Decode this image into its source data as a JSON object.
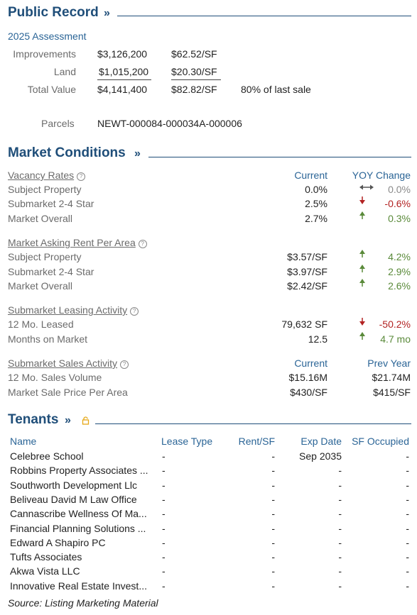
{
  "public_record": {
    "title": "Public Record",
    "assessment_year": "2025 Assessment",
    "rows": [
      {
        "label": "Improvements",
        "value": "$3,126,200",
        "per_sf": "$62.52/SF"
      },
      {
        "label": "Land",
        "value": "$1,015,200",
        "per_sf": "$20.30/SF"
      },
      {
        "label": "Total Value",
        "value": "$4,141,400",
        "per_sf": "$82.82/SF",
        "note": "80% of last sale"
      }
    ],
    "parcels_label": "Parcels",
    "parcels_value": "NEWT-000084-000034A-000006"
  },
  "market": {
    "title": "Market Conditions",
    "vacancy": {
      "title": "Vacancy Rates",
      "col1": "Current",
      "col2": "YOY Change",
      "rows": [
        {
          "label": "Subject Property",
          "current": "0.0%",
          "change": "0.0%",
          "trend": "flat"
        },
        {
          "label": "Submarket 2-4 Star",
          "current": "2.5%",
          "change": "-0.6%",
          "trend": "down"
        },
        {
          "label": "Market Overall",
          "current": "2.7%",
          "change": "0.3%",
          "trend": "up"
        }
      ]
    },
    "rent": {
      "title": "Market Asking Rent Per Area",
      "rows": [
        {
          "label": "Subject Property",
          "current": "$3.57/SF",
          "change": "4.2%",
          "trend": "up"
        },
        {
          "label": "Submarket 2-4 Star",
          "current": "$3.97/SF",
          "change": "2.9%",
          "trend": "up"
        },
        {
          "label": "Market Overall",
          "current": "$2.42/SF",
          "change": "2.6%",
          "trend": "up"
        }
      ]
    },
    "leasing": {
      "title": "Submarket Leasing Activity",
      "rows": [
        {
          "label": "12 Mo. Leased",
          "current": "79,632 SF",
          "change": "-50.2%",
          "trend": "down"
        },
        {
          "label": "Months on Market",
          "current": "12.5",
          "change": "4.7 mo",
          "trend": "up"
        }
      ]
    },
    "sales": {
      "title": "Submarket Sales Activity",
      "col1": "Current",
      "col2": "Prev Year",
      "rows": [
        {
          "label": "12 Mo. Sales Volume",
          "current": "$15.16M",
          "prev": "$21.74M"
        },
        {
          "label": "Market Sale Price Per Area",
          "current": "$430/SF",
          "prev": "$415/SF"
        }
      ]
    }
  },
  "tenants": {
    "title": "Tenants",
    "columns": {
      "name": "Name",
      "lease_type": "Lease Type",
      "rent": "Rent/SF",
      "exp": "Exp Date",
      "sf": "SF Occupied"
    },
    "rows": [
      {
        "name": "Celebree School",
        "lease_type": "-",
        "rent": "-",
        "exp": "Sep 2035",
        "sf": "-"
      },
      {
        "name": "Robbins Property Associates ...",
        "lease_type": "-",
        "rent": "-",
        "exp": "-",
        "sf": "-"
      },
      {
        "name": "Southworth Development Llc",
        "lease_type": "-",
        "rent": "-",
        "exp": "-",
        "sf": "-"
      },
      {
        "name": "Beliveau David M Law Office",
        "lease_type": "-",
        "rent": "-",
        "exp": "-",
        "sf": "-"
      },
      {
        "name": "Cannascribe Wellness Of Ma...",
        "lease_type": "-",
        "rent": "-",
        "exp": "-",
        "sf": "-"
      },
      {
        "name": "Financial Planning Solutions ...",
        "lease_type": "-",
        "rent": "-",
        "exp": "-",
        "sf": "-"
      },
      {
        "name": "Edward A Shapiro PC",
        "lease_type": "-",
        "rent": "-",
        "exp": "-",
        "sf": "-"
      },
      {
        "name": "Tufts Associates",
        "lease_type": "-",
        "rent": "-",
        "exp": "-",
        "sf": "-"
      },
      {
        "name": "Akwa Vista LLC",
        "lease_type": "-",
        "rent": "-",
        "exp": "-",
        "sf": "-"
      },
      {
        "name": "Innovative Real Estate Invest...",
        "lease_type": "-",
        "rent": "-",
        "exp": "-",
        "sf": "-"
      }
    ],
    "source": "Source: Listing Marketing Material"
  },
  "colors": {
    "heading": "#1f4e79",
    "down": "#b22222",
    "up": "#5a8a3a",
    "lock": "#e6a817"
  }
}
